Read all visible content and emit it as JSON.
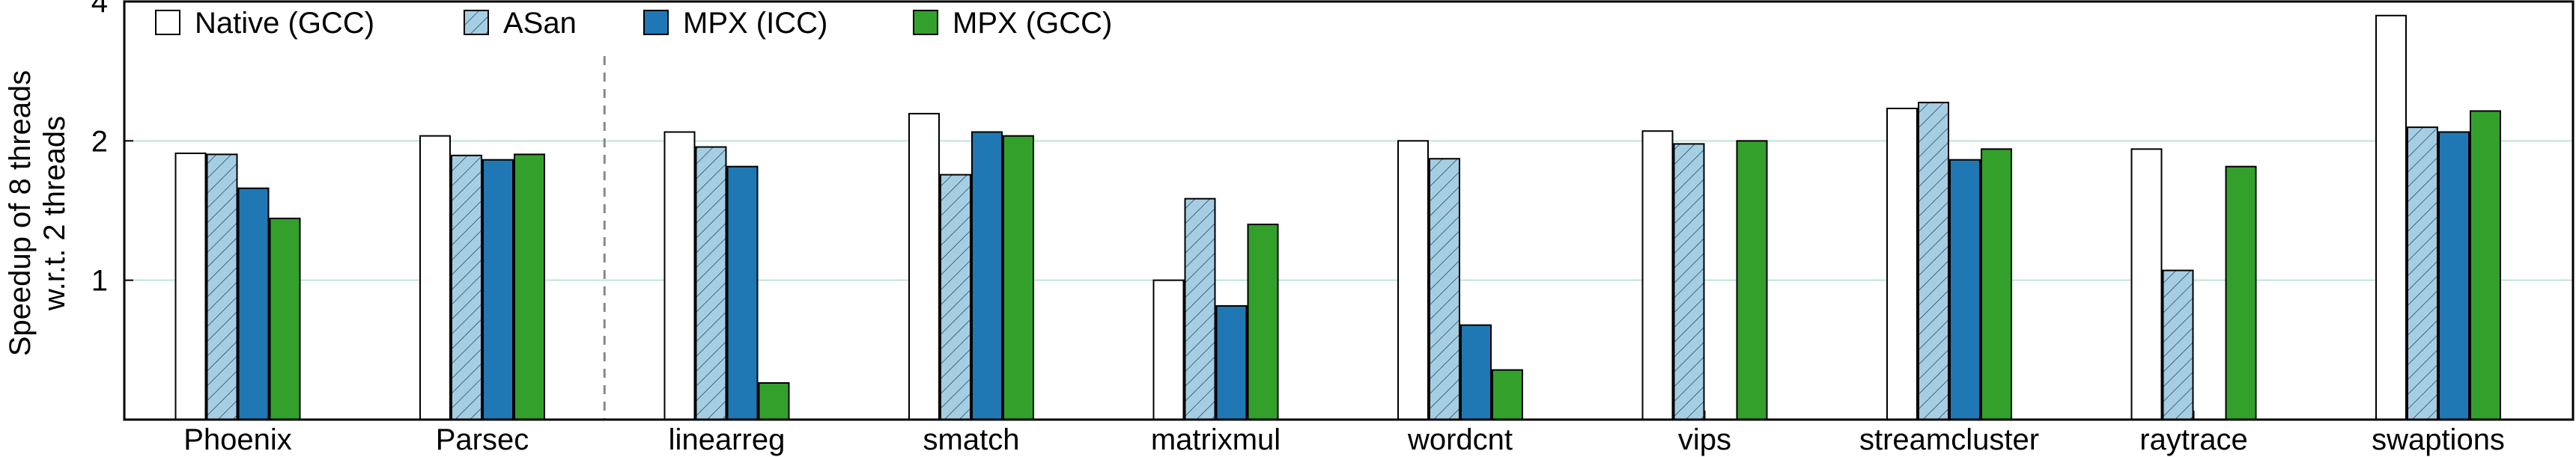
{
  "chart_data": {
    "type": "bar",
    "title": "",
    "xlabel": "",
    "ylabel_lines": [
      "Speedup of 8 threads",
      "w.r.t. 2 threads"
    ],
    "yscale": "log2",
    "ylim": [
      0.5,
      4
    ],
    "yticks": [
      1,
      2,
      4
    ],
    "grid": "horizontal",
    "legend_position": "top-left",
    "categories": [
      "Phoenix",
      "Parsec",
      "linearreg",
      "smatch",
      "matrixmul",
      "wordcnt",
      "vips",
      "streamcluster",
      "raytrace",
      "swaptions"
    ],
    "separator_after_index": 1,
    "series": [
      {
        "name": "Native (GCC)",
        "fill": "#ffffff",
        "hatch": false,
        "values": [
          1.88,
          2.05,
          2.09,
          2.29,
          1.0,
          2.0,
          2.1,
          2.35,
          1.92,
          3.73
        ]
      },
      {
        "name": "ASan",
        "fill": "#a6cee3",
        "hatch": true,
        "values": [
          1.87,
          1.86,
          1.94,
          1.69,
          1.5,
          1.83,
          1.97,
          2.42,
          1.05,
          2.14
        ]
      },
      {
        "name": "MPX (ICC)",
        "fill": "#1f78b4",
        "hatch": false,
        "values": [
          1.58,
          1.82,
          1.76,
          2.09,
          0.88,
          0.8,
          null,
          1.82,
          null,
          2.09
        ]
      },
      {
        "name": "MPX (GCC)",
        "fill": "#33a02c",
        "hatch": false,
        "values": [
          1.36,
          1.87,
          0.6,
          2.05,
          1.32,
          0.64,
          2.0,
          1.92,
          1.76,
          2.32
        ]
      }
    ]
  }
}
